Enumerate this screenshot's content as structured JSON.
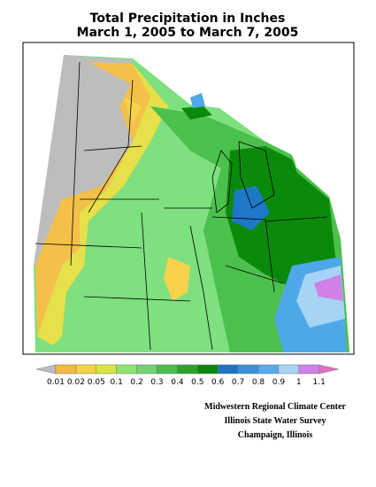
{
  "header": {
    "title_line1": "Total Precipitation in Inches",
    "title_line2": "March 1, 2005 to March 7, 2005"
  },
  "legend": {
    "labels": [
      "0.01",
      "0.02",
      "0.05",
      "0.1",
      "0.2",
      "0.3",
      "0.4",
      "0.5",
      "0.6",
      "0.7",
      "0.8",
      "0.9",
      "1",
      "1.1"
    ]
  },
  "credits": [
    "Midwestern Regional Climate Center",
    "Illinois State Water Survey",
    "Champaign, Illinois"
  ]
}
